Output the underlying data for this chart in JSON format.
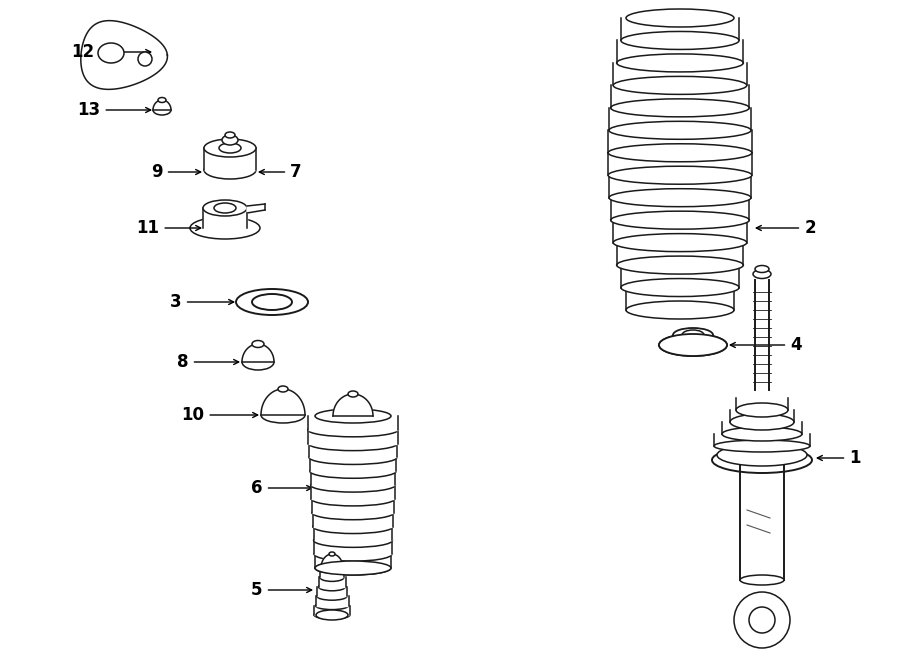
{
  "bg_color": "#ffffff",
  "line_color": "#1a1a1a",
  "lw": 1.1,
  "label_fontsize": 12,
  "figw": 9.0,
  "figh": 6.61,
  "dpi": 100
}
